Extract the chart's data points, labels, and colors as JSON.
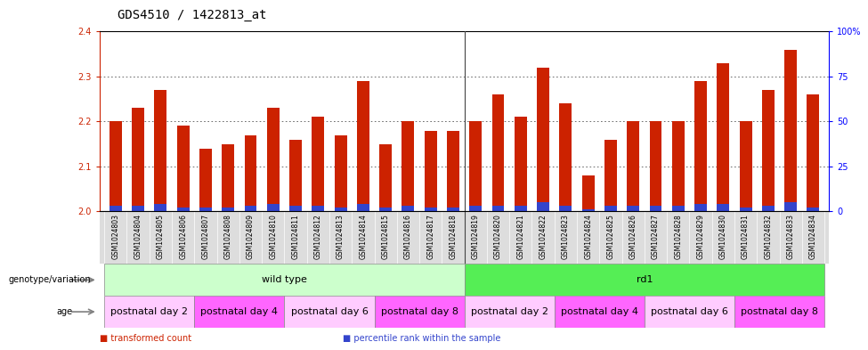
{
  "title": "GDS4510 / 1422813_at",
  "samples": [
    "GSM1024803",
    "GSM1024804",
    "GSM1024805",
    "GSM1024806",
    "GSM1024807",
    "GSM1024808",
    "GSM1024809",
    "GSM1024810",
    "GSM1024811",
    "GSM1024812",
    "GSM1024813",
    "GSM1024814",
    "GSM1024815",
    "GSM1024816",
    "GSM1024817",
    "GSM1024818",
    "GSM1024819",
    "GSM1024820",
    "GSM1024821",
    "GSM1024822",
    "GSM1024823",
    "GSM1024824",
    "GSM1024825",
    "GSM1024826",
    "GSM1024827",
    "GSM1024828",
    "GSM1024829",
    "GSM1024830",
    "GSM1024831",
    "GSM1024832",
    "GSM1024833",
    "GSM1024834"
  ],
  "red_values": [
    2.2,
    2.23,
    2.27,
    2.19,
    2.14,
    2.15,
    2.17,
    2.23,
    2.16,
    2.21,
    2.17,
    2.29,
    2.15,
    2.2,
    2.18,
    2.18,
    2.2,
    2.26,
    2.21,
    2.32,
    2.24,
    2.08,
    2.16,
    2.2,
    2.2,
    2.2,
    2.29,
    2.33,
    2.2,
    2.27,
    2.36,
    2.26
  ],
  "blue_values": [
    3,
    3,
    4,
    2,
    2,
    2,
    3,
    4,
    3,
    3,
    2,
    4,
    2,
    3,
    2,
    2,
    3,
    3,
    3,
    5,
    3,
    1,
    3,
    3,
    3,
    3,
    4,
    4,
    2,
    3,
    5,
    2
  ],
  "ylim_left": [
    2.0,
    2.4
  ],
  "ylim_right": [
    0,
    100
  ],
  "yticks_left": [
    2.0,
    2.1,
    2.2,
    2.3,
    2.4
  ],
  "yticks_right": [
    0,
    25,
    50,
    75,
    100
  ],
  "ytick_right_labels": [
    "0",
    "25",
    "50",
    "75",
    "100%"
  ],
  "bar_color": "#cc2200",
  "blue_color": "#3344cc",
  "grid_color": "#555555",
  "bg_color": "#ffffff",
  "xtick_bg": "#dddddd",
  "genotype_groups": [
    {
      "label": "wild type",
      "start": 0,
      "end": 16,
      "color": "#ccffcc"
    },
    {
      "label": "rd1",
      "start": 16,
      "end": 32,
      "color": "#55ee55"
    }
  ],
  "age_groups": [
    {
      "label": "postnatal day 2",
      "start": 0,
      "end": 4,
      "color": "#ffccff"
    },
    {
      "label": "postnatal day 4",
      "start": 4,
      "end": 8,
      "color": "#ff66ff"
    },
    {
      "label": "postnatal day 6",
      "start": 8,
      "end": 12,
      "color": "#ffccff"
    },
    {
      "label": "postnatal day 8",
      "start": 12,
      "end": 16,
      "color": "#ff66ff"
    },
    {
      "label": "postnatal day 2",
      "start": 16,
      "end": 20,
      "color": "#ffccff"
    },
    {
      "label": "postnatal day 4",
      "start": 20,
      "end": 24,
      "color": "#ff66ff"
    },
    {
      "label": "postnatal day 6",
      "start": 24,
      "end": 28,
      "color": "#ffccff"
    },
    {
      "label": "postnatal day 8",
      "start": 28,
      "end": 32,
      "color": "#ff66ff"
    }
  ],
  "legend_items": [
    {
      "label": "transformed count",
      "color": "#cc2200"
    },
    {
      "label": "percentile rank within the sample",
      "color": "#3344cc"
    }
  ],
  "title_fontsize": 10,
  "tick_fontsize": 7,
  "label_fontsize": 8,
  "annot_fontsize": 8,
  "bar_width": 0.55
}
